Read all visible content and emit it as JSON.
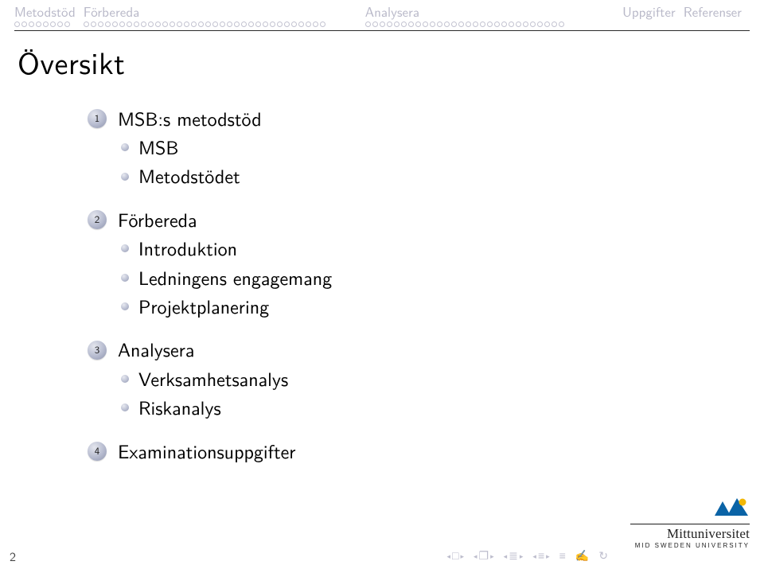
{
  "colors": {
    "navText": "#b8b8c8",
    "dotBorder": "#c2c2d0",
    "rule": "#2a2a2a",
    "text": "#000000",
    "ballGradient": [
      "#e4e6ee",
      "#b6bbcf",
      "#8d93ac"
    ],
    "navSymbols": "#bdbdcd",
    "logoBlue": "#0a63a6",
    "logoYellow": "#f2b705"
  },
  "nav": [
    {
      "label": "Metodstöd",
      "dots": 8
    },
    {
      "label": "Förbereda",
      "dots": 34
    },
    {
      "label": "Analysera",
      "dots": 28
    },
    {
      "label": "Uppgifter",
      "dots": 0
    },
    {
      "label": "Referenser",
      "dots": 0
    }
  ],
  "title": "Översikt",
  "outline": [
    {
      "num": "1",
      "label": "MSB:s metodstöd",
      "subs": [
        "MSB",
        "Metodstödet"
      ]
    },
    {
      "num": "2",
      "label": "Förbereda",
      "subs": [
        "Introduktion",
        "Ledningens engagemang",
        "Projektplanering"
      ]
    },
    {
      "num": "3",
      "label": "Analysera",
      "subs": [
        "Verksamhetsanalys",
        "Riskanalys"
      ]
    },
    {
      "num": "4",
      "label": "Examinationsuppgifter",
      "subs": []
    }
  ],
  "pageNumber": "2",
  "navGlyphs": {
    "left": "◂",
    "right": "▸",
    "square": "□",
    "doc": "❐",
    "lines1": "≡",
    "lines2": "≣",
    "bold": "≡",
    "undo": "↻",
    "search": "�班"
  },
  "logo": {
    "title": "Mittuniversitet",
    "sub": "MID SWEDEN UNIVERSITY"
  }
}
